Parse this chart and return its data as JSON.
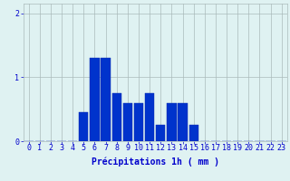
{
  "categories": [
    0,
    1,
    2,
    3,
    4,
    5,
    6,
    7,
    8,
    9,
    10,
    11,
    12,
    13,
    14,
    15,
    16,
    17,
    18,
    19,
    20,
    21,
    22,
    23
  ],
  "values": [
    0,
    0,
    0,
    0,
    0,
    0.45,
    1.3,
    1.3,
    0.75,
    0.6,
    0.6,
    0.75,
    0.25,
    0.6,
    0.6,
    0.25,
    0,
    0,
    0,
    0,
    0,
    0,
    0,
    0
  ],
  "bar_color": "#0033cc",
  "bar_edge_color": "#0022aa",
  "background_color": "#dff2f2",
  "grid_color": "#aabbbb",
  "text_color": "#0000cc",
  "xlabel": "Précipitations 1h ( mm )",
  "ylim": [
    0,
    2.15
  ],
  "yticks": [
    0,
    1,
    2
  ],
  "xlim": [
    -0.5,
    23.5
  ],
  "xlabel_fontsize": 7,
  "tick_fontsize": 6
}
